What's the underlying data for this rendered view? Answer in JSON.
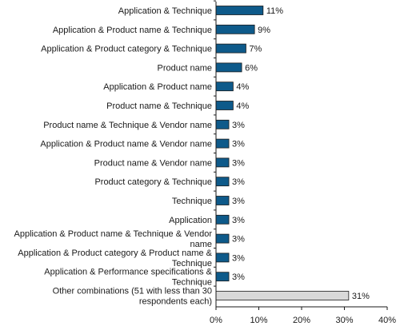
{
  "chart_data": {
    "type": "bar",
    "orientation": "horizontal",
    "categories": [
      "Application & Technique",
      "Application & Product name & Technique",
      "Application & Product category & Technique",
      "Product name",
      "Application & Product name",
      "Product name & Technique",
      "Product name & Technique & Vendor name",
      "Application & Product name & Vendor name",
      "Product name & Vendor name",
      "Product category & Technique",
      "Technique",
      "Application",
      "Application & Product name & Technique & Vendor name",
      "Application & Product category & Product name & Technique",
      "Application & Performance specifications & Technique",
      "Other combinations (51 with less than 30 respondents each)"
    ],
    "values": [
      11,
      9,
      7,
      6,
      4,
      4,
      3,
      3,
      3,
      3,
      3,
      3,
      3,
      3,
      3,
      31
    ],
    "data_labels": [
      "11%",
      "9%",
      "7%",
      "6%",
      "4%",
      "4%",
      "3%",
      "3%",
      "3%",
      "3%",
      "3%",
      "3%",
      "3%",
      "3%",
      "3%",
      "31%"
    ],
    "xlim": [
      0,
      40
    ],
    "xticks": [
      "0%",
      "10%",
      "20%",
      "30%",
      "40%"
    ],
    "xlabel": "",
    "ylabel": "",
    "grid": false,
    "colors": {
      "primary": "#0e5a8a",
      "other": "#d9d9d9",
      "stroke": "#1a1a1a"
    }
  }
}
